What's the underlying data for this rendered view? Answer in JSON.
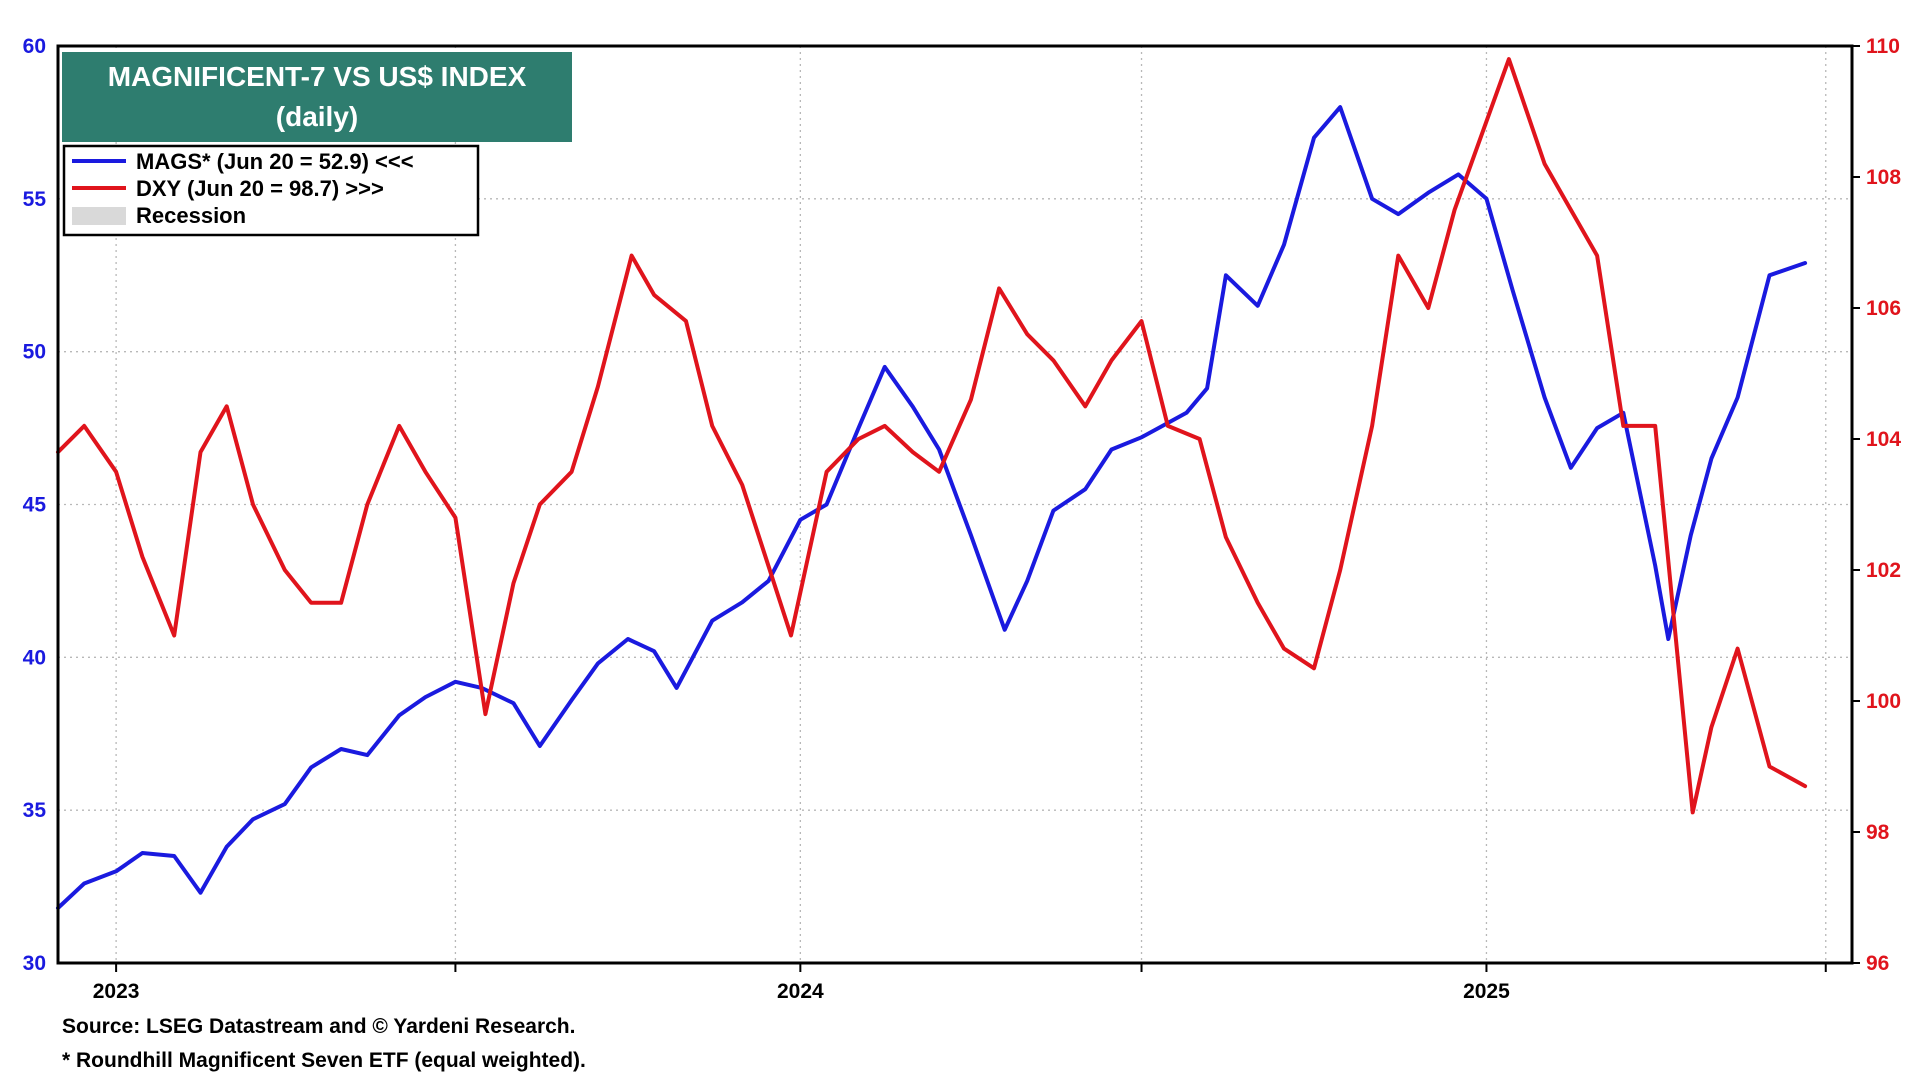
{
  "chart_data": {
    "type": "line",
    "title": "MAGNIFICENT-7 VS US$ INDEX",
    "subtitle": "(daily)",
    "x_ticks": [
      "2023",
      "2024",
      "2025"
    ],
    "x_range": [
      "2022-12-01",
      "2025-07-15"
    ],
    "y_left": {
      "ylim": [
        30,
        60
      ],
      "ticks": [
        "30",
        "35",
        "40",
        "45",
        "50",
        "55",
        "60"
      ],
      "color": "#1a1adf"
    },
    "y_right": {
      "ylim": [
        96,
        110
      ],
      "ticks": [
        "96",
        "98",
        "100",
        "102",
        "104",
        "106",
        "108",
        "110"
      ],
      "color": "#e0141c"
    },
    "grid": true,
    "legend_position": "top-left",
    "legend": [
      {
        "label": "MAGS* (Jun 20 = 52.9) <<<",
        "color": "#1a1adf"
      },
      {
        "label": "DXY (Jun 20 = 98.7) >>>",
        "color": "#e0141c"
      },
      {
        "label": "Recession",
        "color": "#d9d9d9"
      }
    ],
    "series": [
      {
        "name": "MAGS*",
        "axis": "left",
        "color": "#1a1adf",
        "x": [
          "2022-12-01",
          "2022-12-15",
          "2023-01-01",
          "2023-01-15",
          "2023-02-01",
          "2023-02-15",
          "2023-03-01",
          "2023-03-15",
          "2023-04-01",
          "2023-04-15",
          "2023-05-01",
          "2023-05-15",
          "2023-06-01",
          "2023-06-15",
          "2023-07-01",
          "2023-07-15",
          "2023-08-01",
          "2023-08-15",
          "2023-09-01",
          "2023-09-15",
          "2023-10-01",
          "2023-10-15",
          "2023-10-27",
          "2023-11-15",
          "2023-12-01",
          "2023-12-15",
          "2024-01-01",
          "2024-01-15",
          "2024-02-01",
          "2024-02-15",
          "2024-03-01",
          "2024-03-15",
          "2024-04-01",
          "2024-04-19",
          "2024-05-01",
          "2024-05-15",
          "2024-06-01",
          "2024-06-15",
          "2024-07-01",
          "2024-07-10",
          "2024-07-25",
          "2024-08-05",
          "2024-08-15",
          "2024-09-01",
          "2024-09-15",
          "2024-10-01",
          "2024-10-15",
          "2024-11-01",
          "2024-11-15",
          "2024-12-01",
          "2024-12-17",
          "2025-01-01",
          "2025-01-15",
          "2025-02-01",
          "2025-02-15",
          "2025-03-01",
          "2025-03-15",
          "2025-04-01",
          "2025-04-08",
          "2025-04-20",
          "2025-05-01",
          "2025-05-15",
          "2025-06-01",
          "2025-06-20"
        ],
        "values": [
          31.8,
          32.6,
          33.0,
          33.6,
          33.5,
          32.3,
          33.8,
          34.7,
          35.2,
          36.4,
          37.0,
          36.8,
          38.1,
          38.7,
          39.2,
          39.0,
          38.5,
          37.1,
          38.6,
          39.8,
          40.6,
          40.2,
          39.0,
          41.2,
          41.8,
          42.5,
          44.5,
          45.0,
          47.5,
          49.5,
          48.2,
          46.8,
          44.0,
          40.9,
          42.5,
          44.8,
          45.5,
          46.8,
          47.2,
          47.5,
          48.0,
          48.8,
          52.5,
          51.5,
          53.5,
          57.0,
          58.0,
          55.0,
          54.5,
          55.2,
          55.8,
          55.0,
          52.0,
          48.5,
          46.2,
          47.5,
          48.0,
          43.0,
          40.6,
          44.0,
          46.5,
          48.5,
          52.5,
          52.9
        ]
      },
      {
        "name": "DXY",
        "axis": "right",
        "color": "#e0141c",
        "x": [
          "2022-12-01",
          "2022-12-15",
          "2023-01-01",
          "2023-01-15",
          "2023-02-01",
          "2023-02-15",
          "2023-03-01",
          "2023-03-15",
          "2023-04-01",
          "2023-04-15",
          "2023-05-01",
          "2023-05-15",
          "2023-06-01",
          "2023-06-15",
          "2023-07-01",
          "2023-07-17",
          "2023-08-01",
          "2023-08-15",
          "2023-09-01",
          "2023-09-15",
          "2023-10-03",
          "2023-10-15",
          "2023-11-01",
          "2023-11-15",
          "2023-12-01",
          "2023-12-27",
          "2024-01-15",
          "2024-02-01",
          "2024-02-15",
          "2024-03-01",
          "2024-03-15",
          "2024-04-01",
          "2024-04-16",
          "2024-05-01",
          "2024-05-15",
          "2024-06-01",
          "2024-06-15",
          "2024-07-01",
          "2024-07-15",
          "2024-08-01",
          "2024-08-15",
          "2024-09-01",
          "2024-09-15",
          "2024-10-01",
          "2024-10-15",
          "2024-11-01",
          "2024-11-15",
          "2024-12-01",
          "2024-12-15",
          "2025-01-13",
          "2025-02-01",
          "2025-02-15",
          "2025-03-01",
          "2025-03-15",
          "2025-04-01",
          "2025-04-21",
          "2025-05-01",
          "2025-05-15",
          "2025-06-01",
          "2025-06-20"
        ],
        "values": [
          103.8,
          104.2,
          103.5,
          102.2,
          101.0,
          103.8,
          104.5,
          103.0,
          102.0,
          101.5,
          101.5,
          103.0,
          104.2,
          103.5,
          102.8,
          99.8,
          101.8,
          103.0,
          103.5,
          104.8,
          106.8,
          106.2,
          105.8,
          104.2,
          103.3,
          101.0,
          103.5,
          104.0,
          104.2,
          103.8,
          103.5,
          104.6,
          106.3,
          105.6,
          105.2,
          104.5,
          105.2,
          105.8,
          104.2,
          104.0,
          102.5,
          101.5,
          100.8,
          100.5,
          102.0,
          104.2,
          106.8,
          106.0,
          107.5,
          109.8,
          108.2,
          107.5,
          106.8,
          104.2,
          104.2,
          98.3,
          99.6,
          100.8,
          99.0,
          98.7
        ]
      }
    ]
  },
  "footnotes": {
    "source": "Source: LSEG Datastream and © Yardeni Research.",
    "note": "* Roundhill Magnificent Seven ETF (equal weighted)."
  }
}
